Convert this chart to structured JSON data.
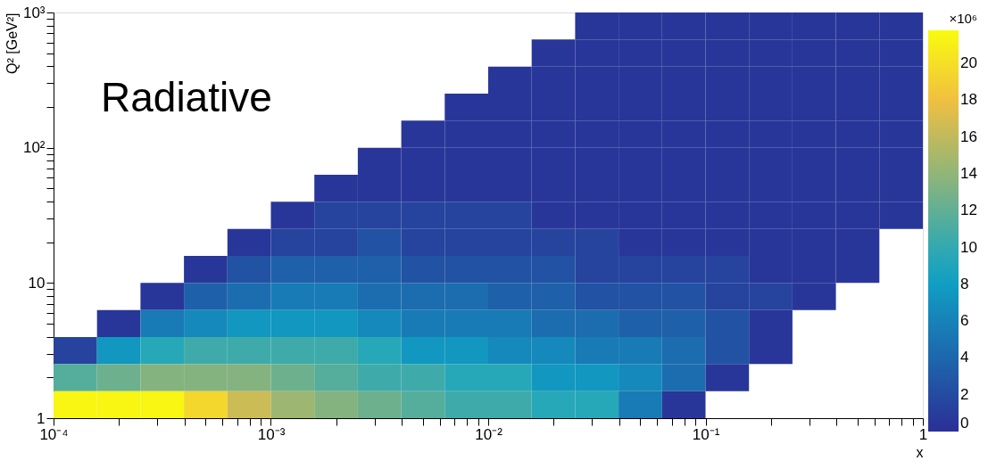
{
  "chart_data": {
    "type": "heatmap",
    "xlabel": "x",
    "ylabel": "Q² [GeV²]",
    "clabel": "×10⁶",
    "annotations": [
      "Radiative"
    ],
    "log": "xy",
    "xlim": [
      0.0001,
      1
    ],
    "ylim": [
      1,
      1000
    ],
    "xticks": [
      {
        "value": 0.0001,
        "label": "10⁻⁴"
      },
      {
        "value": 0.0002,
        "label": null
      },
      {
        "value": 0.0003,
        "label": null
      },
      {
        "value": 0.0004,
        "label": null
      },
      {
        "value": 0.0005,
        "label": null
      },
      {
        "value": 0.0006,
        "label": null
      },
      {
        "value": 0.0007,
        "label": null
      },
      {
        "value": 0.0008,
        "label": null
      },
      {
        "value": 0.0009,
        "label": null
      },
      {
        "value": 0.001,
        "label": "10⁻³"
      },
      {
        "value": 0.002,
        "label": null
      },
      {
        "value": 0.003,
        "label": null
      },
      {
        "value": 0.004,
        "label": null
      },
      {
        "value": 0.005,
        "label": null
      },
      {
        "value": 0.006,
        "label": null
      },
      {
        "value": 0.007,
        "label": null
      },
      {
        "value": 0.008,
        "label": null
      },
      {
        "value": 0.009,
        "label": null
      },
      {
        "value": 0.01,
        "label": "10⁻²"
      },
      {
        "value": 0.02,
        "label": null
      },
      {
        "value": 0.03,
        "label": null
      },
      {
        "value": 0.04,
        "label": null
      },
      {
        "value": 0.05,
        "label": null
      },
      {
        "value": 0.06,
        "label": null
      },
      {
        "value": 0.07,
        "label": null
      },
      {
        "value": 0.08,
        "label": null
      },
      {
        "value": 0.09,
        "label": null
      },
      {
        "value": 0.1,
        "label": "10⁻¹"
      },
      {
        "value": 0.2,
        "label": null
      },
      {
        "value": 0.3,
        "label": null
      },
      {
        "value": 0.4,
        "label": null
      },
      {
        "value": 0.5,
        "label": null
      },
      {
        "value": 0.6,
        "label": null
      },
      {
        "value": 0.7,
        "label": null
      },
      {
        "value": 0.8,
        "label": null
      },
      {
        "value": 0.9,
        "label": null
      },
      1
    ],
    "yticks": [
      1,
      {
        "value": 2,
        "label": null
      },
      {
        "value": 3,
        "label": null
      },
      {
        "value": 4,
        "label": null
      },
      {
        "value": 5,
        "label": null
      },
      {
        "value": 6,
        "label": null
      },
      {
        "value": 7,
        "label": null
      },
      {
        "value": 8,
        "label": null
      },
      {
        "value": 9,
        "label": null
      },
      10,
      {
        "value": 20,
        "label": null
      },
      {
        "value": 30,
        "label": null
      },
      {
        "value": 40,
        "label": null
      },
      {
        "value": 50,
        "label": null
      },
      {
        "value": 60,
        "label": null
      },
      {
        "value": 70,
        "label": null
      },
      {
        "value": 80,
        "label": null
      },
      {
        "value": 90,
        "label": null
      },
      {
        "value": 100,
        "label": "10²"
      },
      {
        "value": 200,
        "label": null
      },
      {
        "value": 300,
        "label": null
      },
      {
        "value": 400,
        "label": null
      },
      {
        "value": 500,
        "label": null
      },
      {
        "value": 600,
        "label": null
      },
      {
        "value": 700,
        "label": null
      },
      {
        "value": 800,
        "label": null
      },
      {
        "value": 900,
        "label": null
      },
      {
        "value": 1000,
        "label": "10³"
      }
    ],
    "clim": [
      0,
      21.8
    ],
    "cticks": [
      0,
      2,
      4,
      6,
      8,
      10,
      12,
      14,
      16,
      18,
      20
    ],
    "grid": false,
    "cells": [
      [
        null,
        null,
        null,
        null,
        null,
        null,
        null,
        null,
        null,
        null,
        null,
        null,
        0.5,
        0.5,
        0.5,
        0.5,
        0.5,
        0.5,
        0.5,
        0.5
      ],
      [
        null,
        null,
        null,
        null,
        null,
        null,
        null,
        null,
        null,
        null,
        null,
        0.5,
        0.5,
        0.5,
        0.5,
        0.5,
        0.5,
        0.5,
        0.5,
        0.5
      ],
      [
        null,
        null,
        null,
        null,
        null,
        null,
        null,
        null,
        null,
        null,
        0.5,
        0.5,
        0.5,
        0.5,
        0.5,
        0.5,
        0.5,
        0.5,
        0.5,
        0.5
      ],
      [
        null,
        null,
        null,
        null,
        null,
        null,
        null,
        null,
        null,
        0.5,
        0.5,
        0.5,
        0.5,
        0.5,
        0.5,
        0.5,
        0.5,
        0.5,
        0.5,
        0.5
      ],
      [
        null,
        null,
        null,
        null,
        null,
        null,
        null,
        null,
        0.5,
        0.5,
        0.5,
        0.5,
        0.5,
        0.5,
        0.5,
        0.5,
        0.5,
        0.5,
        0.5,
        0.5
      ],
      [
        null,
        null,
        null,
        null,
        null,
        null,
        null,
        0.5,
        0.5,
        0.5,
        0.5,
        0.5,
        0.5,
        0.5,
        0.5,
        0.5,
        0.5,
        0.5,
        0.5,
        0.5
      ],
      [
        null,
        null,
        null,
        null,
        null,
        null,
        0.5,
        0.5,
        0.5,
        0.5,
        0.5,
        0.5,
        0.5,
        0.5,
        0.5,
        0.5,
        0.5,
        0.5,
        0.5,
        0.5
      ],
      [
        null,
        null,
        null,
        null,
        null,
        0.5,
        1.5,
        1.5,
        1.5,
        1.5,
        1.5,
        0.5,
        0.5,
        0.5,
        0.5,
        0.5,
        0.5,
        0.5,
        0.5,
        0.5
      ],
      [
        null,
        null,
        null,
        null,
        0.5,
        1.5,
        1.5,
        2.5,
        1.5,
        1.5,
        1.5,
        1.5,
        1.5,
        0.5,
        0.5,
        0.5,
        0.5,
        0.5,
        0.5,
        null
      ],
      [
        null,
        null,
        null,
        0.5,
        2.5,
        3.5,
        3.5,
        3.5,
        2.5,
        2.5,
        2.5,
        2.5,
        1.5,
        1.5,
        1.5,
        1.5,
        0.5,
        0.5,
        0.5,
        null
      ],
      [
        null,
        null,
        0.5,
        3.5,
        4.5,
        5.5,
        5.5,
        4.5,
        4.5,
        4.5,
        3.5,
        3.5,
        2.5,
        2.5,
        2.5,
        1.5,
        1.5,
        0.5,
        null,
        null
      ],
      [
        null,
        0.5,
        5.5,
        6.5,
        7.5,
        7.5,
        7.5,
        6.5,
        5.5,
        5.5,
        5.5,
        4.5,
        4.5,
        3.5,
        3.5,
        2.5,
        0.5,
        null,
        null,
        null
      ],
      [
        1.5,
        7.5,
        9.5,
        10.5,
        10.5,
        10.5,
        10.5,
        9.5,
        7.5,
        7.5,
        6.5,
        6.5,
        5.5,
        5.5,
        4.5,
        2.5,
        0.5,
        null,
        null,
        null
      ],
      [
        11.5,
        12.5,
        13.5,
        13.5,
        13.5,
        12.5,
        11.5,
        10.5,
        10.5,
        9.5,
        9.5,
        7.5,
        7.5,
        6.5,
        4.5,
        0.5,
        null,
        null,
        null,
        null
      ],
      [
        21.5,
        21.5,
        21.5,
        19.5,
        16.5,
        14.5,
        13.5,
        12.5,
        11.5,
        10.5,
        10.5,
        9.5,
        9.5,
        5.5,
        0.5,
        null,
        null,
        null,
        null,
        null
      ]
    ]
  }
}
